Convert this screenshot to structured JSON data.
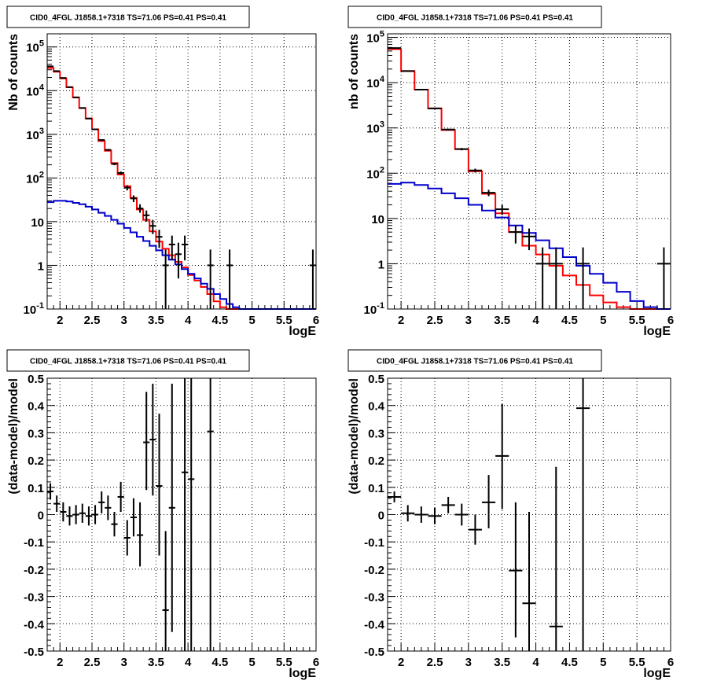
{
  "title_text": "CID0_4FGL J1858.1+7318 TS=71.06 PS=0.41 PS=0.41",
  "colors": {
    "data": "#000000",
    "total_model": "#ff0000",
    "source_model": "#0000cc",
    "grid": "#000000"
  },
  "chart_data": [
    {
      "type": "line",
      "panel": "top-left",
      "title": "CID0_4FGL J1858.1+7318 TS=71.06 PS=0.41 PS=0.41",
      "xlabel": "logE",
      "ylabel": "Nb of counts",
      "xlim": [
        1.8,
        6.0
      ],
      "ylim": [
        0.1,
        200000
      ],
      "log_y": true,
      "grid": true,
      "x_ticks": [
        "2",
        "2.5",
        "3",
        "3.5",
        "4",
        "4.5",
        "5",
        "5.5",
        "6"
      ],
      "y_ticks": [
        "10^-1",
        "1",
        "10",
        "10^2",
        "10^3",
        "10^4",
        "10^5"
      ],
      "bin_edges": [
        1.8,
        1.9,
        2.0,
        2.1,
        2.2,
        2.3,
        2.4,
        2.5,
        2.6,
        2.7,
        2.8,
        2.9,
        3.0,
        3.1,
        3.2,
        3.3,
        3.4,
        3.5,
        3.6,
        3.7,
        3.8,
        3.9,
        4.0,
        4.1,
        4.2,
        4.3,
        4.4,
        4.5,
        4.6,
        4.7,
        4.8,
        4.9,
        5.0,
        5.1,
        5.2,
        5.3,
        5.4,
        5.5,
        5.6,
        5.7,
        5.8,
        5.9,
        6.0
      ],
      "series": [
        {
          "kind": "step",
          "color": "#ff0000",
          "values": [
            33000,
            27000,
            19000,
            12000,
            7000,
            4000,
            2300,
            1300,
            700,
            420,
            220,
            120,
            65,
            35,
            19,
            11,
            6,
            3.5,
            2.4,
            1.7,
            1.2,
            0.9,
            0.6,
            0.45,
            0.32,
            0.22,
            0.15,
            0.11,
            0.1,
            0.1,
            0.1,
            0.1,
            0.1,
            0.1,
            0.1,
            0.1,
            0.1,
            0.1,
            0.1,
            0.1,
            0.1,
            0.1
          ]
        },
        {
          "kind": "step",
          "color": "#0000cc",
          "values": [
            28,
            30,
            30,
            29,
            27,
            25,
            22,
            19,
            16,
            13.5,
            11,
            9,
            7.2,
            5.7,
            4.5,
            3.6,
            2.8,
            2.2,
            1.7,
            1.35,
            1.05,
            0.82,
            0.64,
            0.5,
            0.38,
            0.29,
            0.22,
            0.17,
            0.13,
            0.11,
            0.1,
            0.1,
            0.1,
            0.1,
            0.1,
            0.1,
            0.1,
            0.1,
            0.1,
            0.1,
            0.1,
            0.1
          ]
        },
        {
          "kind": "points",
          "color": "#000000",
          "points": [
            {
              "x": 1.85,
              "y": 36000,
              "ylo": 35000,
              "yhi": 37000
            },
            {
              "x": 1.95,
              "y": 28000,
              "ylo": 27000,
              "yhi": 29000
            },
            {
              "x": 2.05,
              "y": 19500,
              "ylo": 19000,
              "yhi": 20000
            },
            {
              "x": 2.15,
              "y": 12000,
              "ylo": 11700,
              "yhi": 12300
            },
            {
              "x": 2.25,
              "y": 7000,
              "ylo": 6800,
              "yhi": 7200
            },
            {
              "x": 2.35,
              "y": 4000,
              "ylo": 3900,
              "yhi": 4100
            },
            {
              "x": 2.45,
              "y": 2300,
              "ylo": 2230,
              "yhi": 2370
            },
            {
              "x": 2.55,
              "y": 1300,
              "ylo": 1250,
              "yhi": 1350
            },
            {
              "x": 2.65,
              "y": 740,
              "ylo": 710,
              "yhi": 770
            },
            {
              "x": 2.75,
              "y": 440,
              "ylo": 420,
              "yhi": 460
            },
            {
              "x": 2.85,
              "y": 210,
              "ylo": 196,
              "yhi": 224
            },
            {
              "x": 2.95,
              "y": 130,
              "ylo": 119,
              "yhi": 141
            },
            {
              "x": 3.05,
              "y": 60,
              "ylo": 52,
              "yhi": 68
            },
            {
              "x": 3.15,
              "y": 34,
              "ylo": 28,
              "yhi": 40
            },
            {
              "x": 3.25,
              "y": 20,
              "ylo": 16,
              "yhi": 25
            },
            {
              "x": 3.35,
              "y": 14,
              "ylo": 10,
              "yhi": 18
            },
            {
              "x": 3.45,
              "y": 8,
              "ylo": 5.2,
              "yhi": 11
            },
            {
              "x": 3.55,
              "y": 4.5,
              "ylo": 2.5,
              "yhi": 6.5
            },
            {
              "x": 3.65,
              "y": 1,
              "ylo": 0.1,
              "yhi": 2.3
            },
            {
              "x": 3.75,
              "y": 3,
              "ylo": 1.3,
              "yhi": 4.8
            },
            {
              "x": 3.85,
              "y": 1.8,
              "ylo": 0.5,
              "yhi": 3.3
            },
            {
              "x": 3.95,
              "y": 3,
              "ylo": 1.3,
              "yhi": 4.8
            },
            {
              "x": 4.35,
              "y": 1,
              "ylo": 0.1,
              "yhi": 2.3
            },
            {
              "x": 4.65,
              "y": 1,
              "ylo": 0.1,
              "yhi": 2.3
            },
            {
              "x": 5.95,
              "y": 1,
              "ylo": 0.1,
              "yhi": 2.3
            }
          ]
        }
      ]
    },
    {
      "type": "line",
      "panel": "top-right",
      "title": "CID0_4FGL J1858.1+7318 TS=71.06 PS=0.41 PS=0.41",
      "xlabel": "logE",
      "ylabel": "nb of counts",
      "xlim": [
        1.8,
        6.0
      ],
      "ylim": [
        0.1,
        120000
      ],
      "log_y": true,
      "grid": true,
      "x_ticks": [
        "2",
        "2.5",
        "3",
        "3.5",
        "4",
        "4.5",
        "5",
        "5.5",
        "6"
      ],
      "y_ticks": [
        "10^-1",
        "1",
        "10",
        "10^2",
        "10^3",
        "10^4",
        "10^5"
      ],
      "bin_edges": [
        1.8,
        2.0,
        2.2,
        2.4,
        2.6,
        2.8,
        3.0,
        3.2,
        3.4,
        3.6,
        3.8,
        4.0,
        4.2,
        4.4,
        4.6,
        4.8,
        5.0,
        5.2,
        5.4,
        5.6,
        5.8,
        6.0
      ],
      "series": [
        {
          "kind": "step",
          "color": "#ff0000",
          "values": [
            55000,
            18000,
            7000,
            2700,
            900,
            340,
            110,
            35,
            13,
            5,
            2.5,
            1.6,
            0.9,
            0.55,
            0.34,
            0.2,
            0.14,
            0.11,
            0.1,
            0.1,
            0.1
          ]
        },
        {
          "kind": "step",
          "color": "#0000cc",
          "values": [
            58,
            62,
            55,
            46,
            36,
            28,
            20,
            15,
            10.5,
            7,
            4.8,
            3.3,
            2.2,
            1.4,
            0.9,
            0.6,
            0.38,
            0.24,
            0.15,
            0.11,
            0.1
          ]
        },
        {
          "kind": "points",
          "color": "#000000",
          "points": [
            {
              "x": 1.9,
              "y": 58000,
              "ylo": 56000,
              "yhi": 60000
            },
            {
              "x": 2.1,
              "y": 18000,
              "ylo": 17500,
              "yhi": 18500
            },
            {
              "x": 2.3,
              "y": 7000,
              "ylo": 6800,
              "yhi": 7200
            },
            {
              "x": 2.5,
              "y": 2700,
              "ylo": 2620,
              "yhi": 2780
            },
            {
              "x": 2.7,
              "y": 920,
              "ylo": 880,
              "yhi": 960
            },
            {
              "x": 2.9,
              "y": 340,
              "ylo": 320,
              "yhi": 360
            },
            {
              "x": 3.1,
              "y": 115,
              "ylo": 104,
              "yhi": 126
            },
            {
              "x": 3.3,
              "y": 37,
              "ylo": 31,
              "yhi": 43
            },
            {
              "x": 3.5,
              "y": 16,
              "ylo": 12,
              "yhi": 20
            },
            {
              "x": 3.7,
              "y": 5,
              "ylo": 2.8,
              "yhi": 7.2
            },
            {
              "x": 3.9,
              "y": 4,
              "ylo": 2,
              "yhi": 6
            },
            {
              "x": 4.1,
              "y": 1,
              "ylo": 0.1,
              "yhi": 2.3
            },
            {
              "x": 4.3,
              "y": 1,
              "ylo": 0.1,
              "yhi": 2.3
            },
            {
              "x": 4.7,
              "y": 1,
              "ylo": 0.1,
              "yhi": 2.3
            },
            {
              "x": 5.9,
              "y": 1,
              "ylo": 0.1,
              "yhi": 2.3
            }
          ]
        }
      ]
    },
    {
      "type": "scatter",
      "panel": "bottom-left",
      "title": "CID0_4FGL J1858.1+7318 TS=71.06 PS=0.41 PS=0.41",
      "xlabel": "logE",
      "ylabel": "(data-model)/model",
      "xlim": [
        1.8,
        6.0
      ],
      "ylim": [
        -0.5,
        0.5
      ],
      "log_y": false,
      "grid": true,
      "x_ticks": [
        "2",
        "2.5",
        "3",
        "3.5",
        "4",
        "4.5",
        "5",
        "5.5",
        "6"
      ],
      "y_ticks": [
        "-0.5",
        "-0.4",
        "-0.3",
        "-0.2",
        "-0.1",
        "0",
        "0.1",
        "0.2",
        "0.3",
        "0.4",
        "0.5"
      ],
      "series": [
        {
          "kind": "points",
          "color": "#000000",
          "xerr": 0.05,
          "points": [
            {
              "x": 1.85,
              "y": 0.085,
              "ylo": 0.055,
              "yhi": 0.115
            },
            {
              "x": 1.95,
              "y": 0.04,
              "ylo": 0.01,
              "yhi": 0.07
            },
            {
              "x": 2.05,
              "y": 0.01,
              "ylo": -0.025,
              "yhi": 0.045
            },
            {
              "x": 2.15,
              "y": -0.005,
              "ylo": -0.04,
              "yhi": 0.03
            },
            {
              "x": 2.25,
              "y": 0.0,
              "ylo": -0.035,
              "yhi": 0.035
            },
            {
              "x": 2.35,
              "y": 0.005,
              "ylo": -0.03,
              "yhi": 0.04
            },
            {
              "x": 2.45,
              "y": -0.005,
              "ylo": -0.04,
              "yhi": 0.03
            },
            {
              "x": 2.55,
              "y": 0.0,
              "ylo": -0.035,
              "yhi": 0.035
            },
            {
              "x": 2.65,
              "y": 0.045,
              "ylo": 0.005,
              "yhi": 0.085
            },
            {
              "x": 2.75,
              "y": 0.025,
              "ylo": -0.02,
              "yhi": 0.07
            },
            {
              "x": 2.85,
              "y": -0.035,
              "ylo": -0.08,
              "yhi": 0.01
            },
            {
              "x": 2.95,
              "y": 0.065,
              "ylo": 0.01,
              "yhi": 0.12
            },
            {
              "x": 3.05,
              "y": -0.085,
              "ylo": -0.15,
              "yhi": -0.02
            },
            {
              "x": 3.15,
              "y": -0.01,
              "ylo": -0.08,
              "yhi": 0.06
            },
            {
              "x": 3.25,
              "y": -0.075,
              "ylo": -0.19,
              "yhi": 0.045
            },
            {
              "x": 3.35,
              "y": 0.265,
              "ylo": 0.09,
              "yhi": 0.45
            },
            {
              "x": 3.45,
              "y": 0.275,
              "ylo": 0.07,
              "yhi": 0.48
            },
            {
              "x": 3.55,
              "y": 0.105,
              "ylo": -0.15,
              "yhi": 0.37
            },
            {
              "x": 3.65,
              "y": -0.35,
              "ylo": -0.5,
              "yhi": -0.06
            },
            {
              "x": 3.75,
              "y": 0.025,
              "ylo": -0.43,
              "yhi": 0.48
            },
            {
              "x": 3.95,
              "y": 0.155,
              "ylo": -0.5,
              "yhi": 0.5
            },
            {
              "x": 4.05,
              "y": 0.13,
              "ylo": -0.5,
              "yhi": 0.5
            },
            {
              "x": 4.35,
              "y": 0.305,
              "ylo": -0.5,
              "yhi": 0.5
            }
          ]
        }
      ]
    },
    {
      "type": "scatter",
      "panel": "bottom-right",
      "title": "CID0_4FGL J1858.1+7318 TS=71.06 PS=0.41 PS=0.41",
      "xlabel": "logE",
      "ylabel": "(data-model)/model",
      "xlim": [
        1.8,
        6.0
      ],
      "ylim": [
        -0.5,
        0.5
      ],
      "log_y": false,
      "grid": true,
      "x_ticks": [
        "2",
        "2.5",
        "3",
        "3.5",
        "4",
        "4.5",
        "5",
        "5.5",
        "6"
      ],
      "y_ticks": [
        "-0.5",
        "-0.4",
        "-0.3",
        "-0.2",
        "-0.1",
        "0",
        "0.1",
        "0.2",
        "0.3",
        "0.4",
        "0.5"
      ],
      "series": [
        {
          "kind": "points",
          "color": "#000000",
          "xerr": 0.1,
          "points": [
            {
              "x": 1.9,
              "y": 0.065,
              "ylo": 0.045,
              "yhi": 0.085
            },
            {
              "x": 2.1,
              "y": 0.005,
              "ylo": -0.025,
              "yhi": 0.035
            },
            {
              "x": 2.3,
              "y": 0.0,
              "ylo": -0.03,
              "yhi": 0.03
            },
            {
              "x": 2.5,
              "y": -0.005,
              "ylo": -0.035,
              "yhi": 0.025
            },
            {
              "x": 2.7,
              "y": 0.035,
              "ylo": 0.005,
              "yhi": 0.065
            },
            {
              "x": 2.9,
              "y": 0.0,
              "ylo": -0.04,
              "yhi": 0.04
            },
            {
              "x": 3.1,
              "y": -0.055,
              "ylo": -0.11,
              "yhi": 0.0
            },
            {
              "x": 3.3,
              "y": 0.045,
              "ylo": -0.05,
              "yhi": 0.145
            },
            {
              "x": 3.5,
              "y": 0.215,
              "ylo": 0.02,
              "yhi": 0.405
            },
            {
              "x": 3.7,
              "y": -0.205,
              "ylo": -0.45,
              "yhi": 0.045
            },
            {
              "x": 3.9,
              "y": -0.325,
              "ylo": -0.5,
              "yhi": 0.01
            },
            {
              "x": 4.3,
              "y": -0.41,
              "ylo": -0.5,
              "yhi": 0.175
            },
            {
              "x": 4.7,
              "y": 0.39,
              "ylo": -0.5,
              "yhi": 0.5
            }
          ]
        }
      ]
    }
  ]
}
